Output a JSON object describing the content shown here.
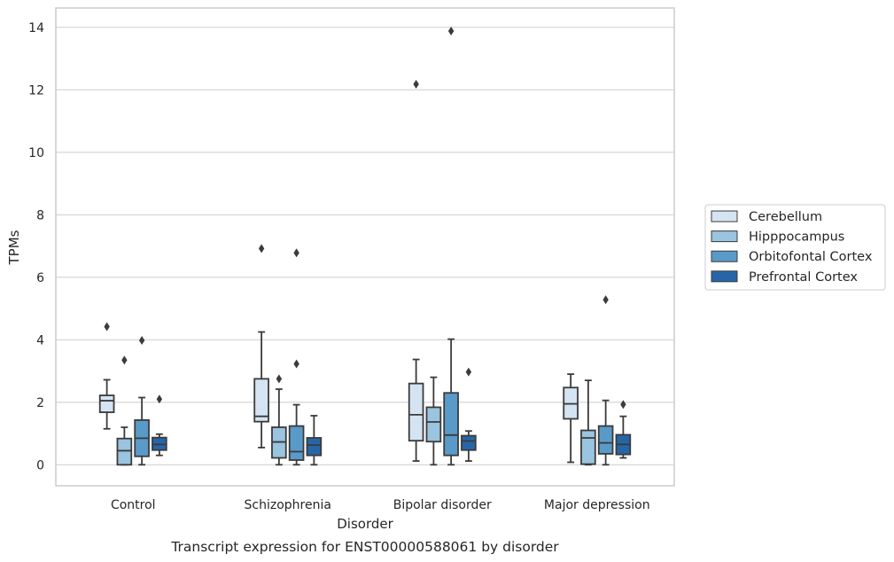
{
  "chart_data": {
    "type": "box",
    "caption": "Transcript expression for ENST00000588061 by disorder",
    "xlabel": "Disorder",
    "ylabel": "TPMs",
    "ylim": [
      -0.65,
      14.6
    ],
    "yticks": [
      0,
      2,
      4,
      6,
      8,
      10,
      12,
      14
    ],
    "grid": "horizontal",
    "legend_position": "right",
    "categories": [
      "Control",
      "Schizophrenia",
      "Bipolar disorder",
      "Major depression"
    ],
    "series": [
      {
        "name": "Cerebellum",
        "color": "#d5e4f2",
        "boxes": [
          {
            "whislo": 1.15,
            "q1": 1.68,
            "med": 2.05,
            "q3": 2.22,
            "whishi": 2.72,
            "fliers": [
              4.42
            ]
          },
          {
            "whislo": 0.55,
            "q1": 1.38,
            "med": 1.55,
            "q3": 2.75,
            "whishi": 4.25,
            "fliers": [
              6.92
            ]
          },
          {
            "whislo": 0.12,
            "q1": 0.77,
            "med": 1.6,
            "q3": 2.6,
            "whishi": 3.37,
            "fliers": [
              12.18
            ]
          },
          {
            "whislo": 0.08,
            "q1": 1.47,
            "med": 1.95,
            "q3": 2.47,
            "whishi": 2.9,
            "fliers": []
          }
        ]
      },
      {
        "name": "Hipppocampus",
        "color": "#9ac4df",
        "boxes": [
          {
            "whislo": 0.0,
            "q1": 0.0,
            "med": 0.45,
            "q3": 0.84,
            "whishi": 1.2,
            "fliers": [
              3.35
            ]
          },
          {
            "whislo": 0.0,
            "q1": 0.22,
            "med": 0.73,
            "q3": 1.2,
            "whishi": 2.42,
            "fliers": [
              2.75
            ]
          },
          {
            "whislo": 0.0,
            "q1": 0.74,
            "med": 1.37,
            "q3": 1.84,
            "whishi": 2.8,
            "fliers": []
          },
          {
            "whislo": 0.0,
            "q1": 0.02,
            "med": 0.86,
            "q3": 1.1,
            "whishi": 2.7,
            "fliers": []
          }
        ]
      },
      {
        "name": "Orbitofontal Cortex",
        "color": "#5a9ac8",
        "boxes": [
          {
            "whislo": 0.0,
            "q1": 0.27,
            "med": 0.85,
            "q3": 1.43,
            "whishi": 2.15,
            "fliers": [
              3.98
            ]
          },
          {
            "whislo": 0.0,
            "q1": 0.15,
            "med": 0.42,
            "q3": 1.24,
            "whishi": 1.92,
            "fliers": [
              3.23,
              6.78
            ]
          },
          {
            "whislo": 0.0,
            "q1": 0.3,
            "med": 0.95,
            "q3": 2.3,
            "whishi": 4.02,
            "fliers": [
              13.88
            ]
          },
          {
            "whislo": 0.0,
            "q1": 0.35,
            "med": 0.7,
            "q3": 1.24,
            "whishi": 2.06,
            "fliers": [
              5.28
            ]
          }
        ]
      },
      {
        "name": "Prefrontal Cortex",
        "color": "#2666a8",
        "boxes": [
          {
            "whislo": 0.3,
            "q1": 0.47,
            "med": 0.65,
            "q3": 0.87,
            "whishi": 0.98,
            "fliers": [
              2.1
            ]
          },
          {
            "whislo": 0.0,
            "q1": 0.3,
            "med": 0.63,
            "q3": 0.86,
            "whishi": 1.57,
            "fliers": []
          },
          {
            "whislo": 0.12,
            "q1": 0.47,
            "med": 0.76,
            "q3": 0.93,
            "whishi": 1.08,
            "fliers": [
              2.97
            ]
          },
          {
            "whislo": 0.22,
            "q1": 0.33,
            "med": 0.65,
            "q3": 0.96,
            "whishi": 1.55,
            "fliers": [
              1.93
            ]
          }
        ]
      }
    ]
  }
}
